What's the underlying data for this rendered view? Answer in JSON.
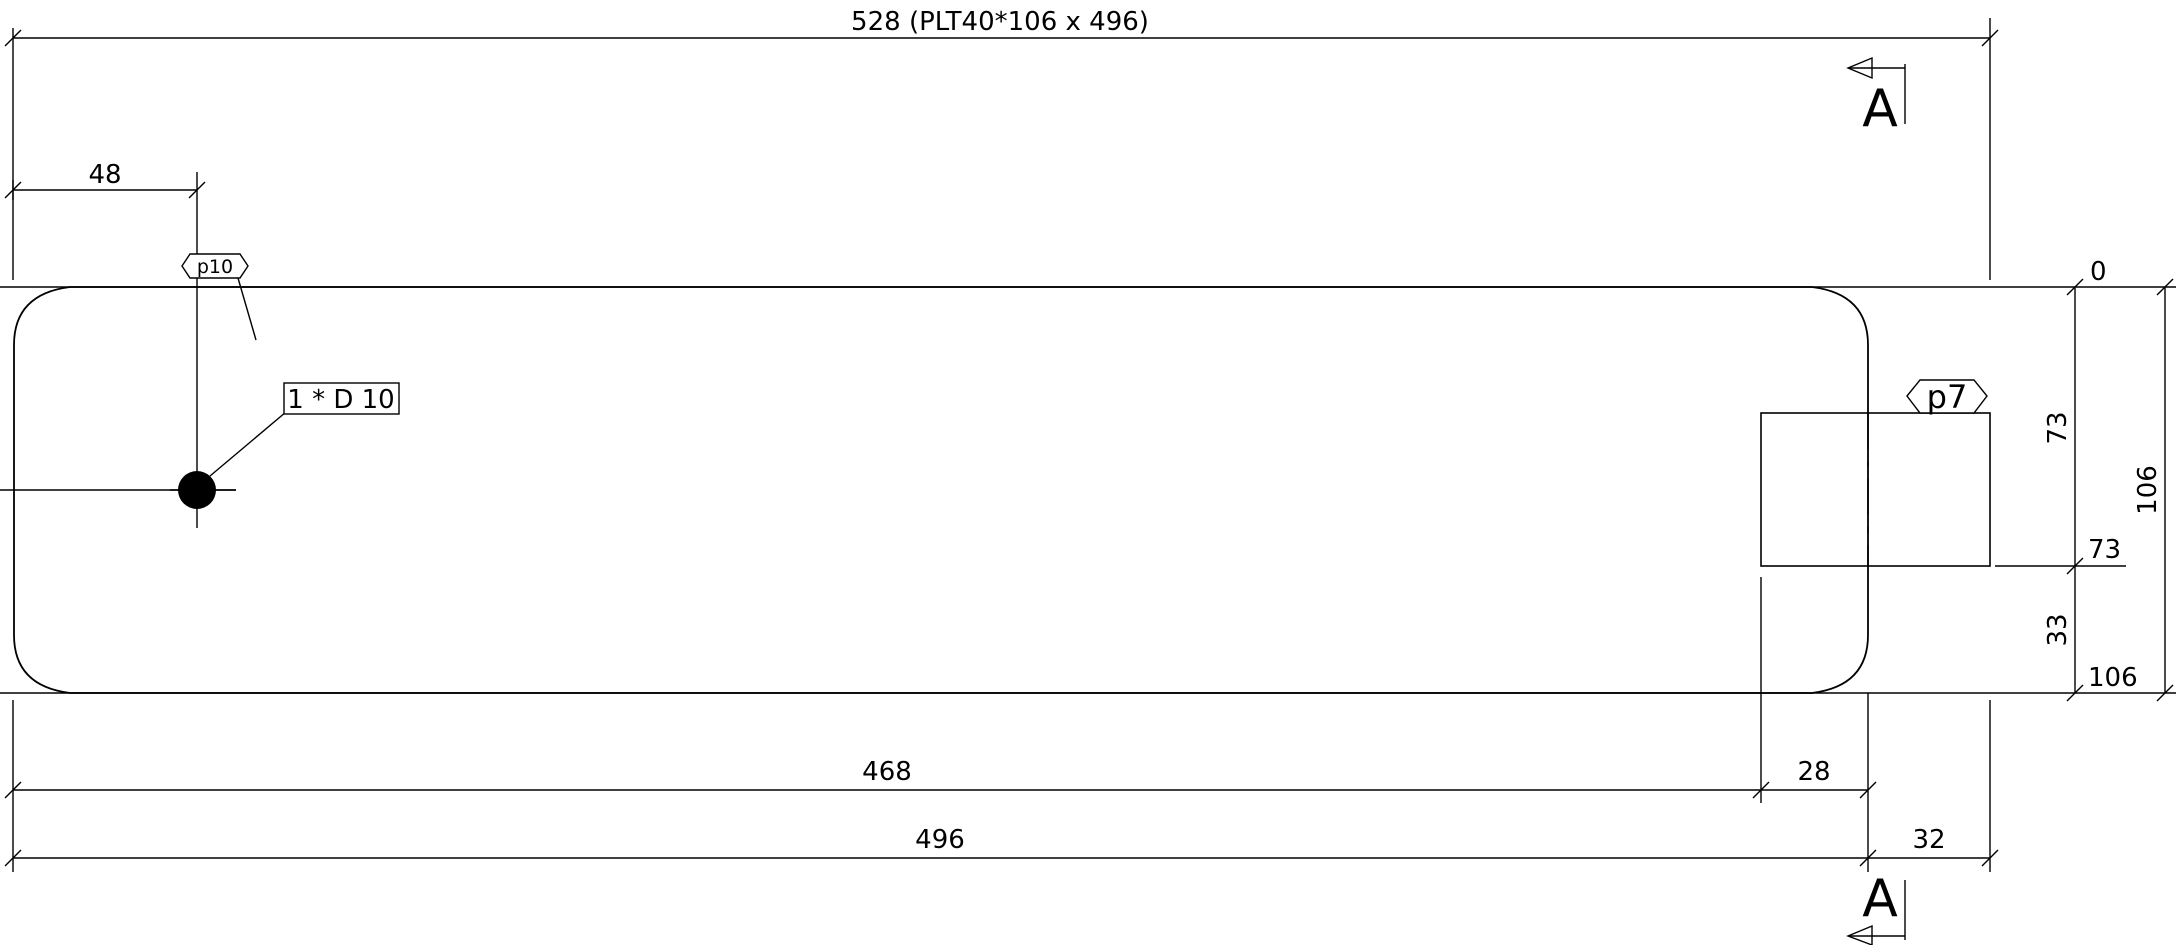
{
  "drawing": {
    "overall_dimension": "528 (PLT40*106 x 496)",
    "section_marker": "A",
    "part_tags": {
      "hole_part": "p10",
      "block_part": "p7"
    },
    "hole_callout": "1 * D 10",
    "dimensions": {
      "hole_offset": "48",
      "length_to_block": "468",
      "block_width": "28",
      "plate_length": "496",
      "overhang": "32",
      "height_73": "73",
      "height_33": "33",
      "total_height": "106",
      "ordinate_0": "0",
      "ordinate_73": "73",
      "ordinate_106": "106"
    }
  }
}
